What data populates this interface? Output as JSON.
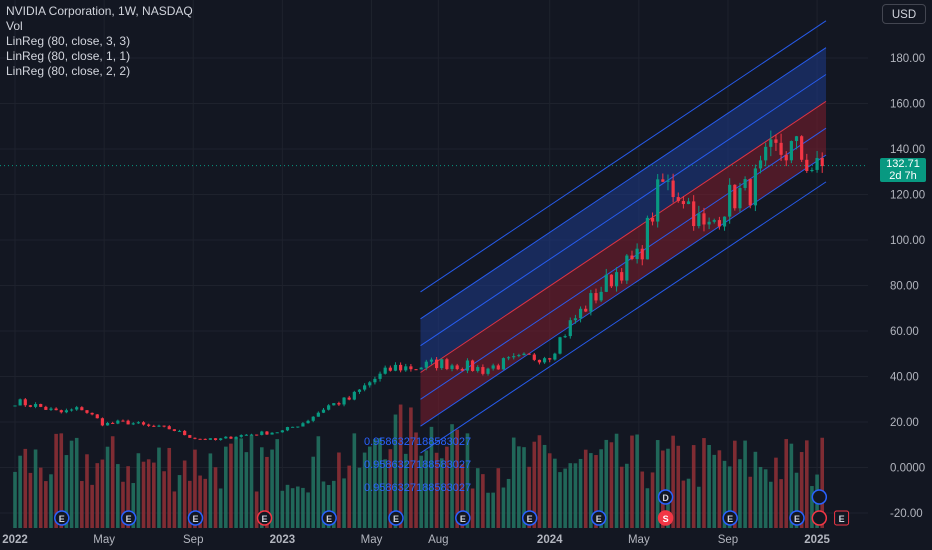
{
  "legend": {
    "symbol": "NVIDIA Corporation, 1W, NASDAQ",
    "volume": "Vol",
    "linreg": [
      "LinReg (80, close, 3, 3)",
      "LinReg (80, close, 1, 1)",
      "LinReg (80, close, 2, 2)"
    ]
  },
  "currency_button": "USD",
  "price_tag": {
    "value": "132.71",
    "countdown": "2d 7h"
  },
  "colors": {
    "background": "#131722",
    "up": "#089981",
    "down": "#f23645",
    "channel_line": "#2962ff",
    "channel_upper_fill": "#1e3a8a",
    "channel_lower_fill": "#7f1d2d",
    "up_volume": "#22705f",
    "down_volume": "#8c2f35"
  },
  "overlay_labels": [
    "0.9586327188583027",
    "0.9586327188583027",
    "0.9586327188583027"
  ],
  "event_icons": [
    {
      "month": 2.1,
      "letter": "E",
      "kind": "earnings"
    },
    {
      "month": 5.1,
      "letter": "E",
      "kind": "earnings"
    },
    {
      "month": 8.1,
      "letter": "E",
      "kind": "earnings"
    },
    {
      "month": 11.2,
      "letter": "E",
      "kind": "earnings-down"
    },
    {
      "month": 14.1,
      "letter": "E",
      "kind": "earnings"
    },
    {
      "month": 17.1,
      "letter": "E",
      "kind": "earnings"
    },
    {
      "month": 20.1,
      "letter": "E",
      "kind": "earnings"
    },
    {
      "month": 23.1,
      "letter": "E",
      "kind": "earnings"
    },
    {
      "month": 26.2,
      "letter": "E",
      "kind": "earnings"
    },
    {
      "month": 29.2,
      "letter": "S",
      "kind": "split"
    },
    {
      "month": 29.2,
      "letter": "D",
      "kind": "dividend"
    },
    {
      "month": 32.1,
      "letter": "E",
      "kind": "earnings"
    },
    {
      "month": 35.1,
      "letter": "E",
      "kind": "earnings"
    },
    {
      "month": 36.1,
      "letter": "",
      "kind": "event-future"
    },
    {
      "month": 36.1,
      "letter": "",
      "kind": "flash-future"
    },
    {
      "month": 37.1,
      "letter": "E",
      "kind": "earnings-upcoming"
    }
  ],
  "chart_data": {
    "type": "candlestick",
    "title": "NVIDIA Corporation, 1W, NASDAQ",
    "y_ticks": [
      "180.00",
      "160.00",
      "140.00",
      "120.00",
      "100.00",
      "80.00",
      "60.00",
      "40.00",
      "20.00",
      "0.0000",
      "-20.00"
    ],
    "x_ticks": [
      {
        "label": "2022",
        "month": 0
      },
      {
        "label": "May",
        "month": 4
      },
      {
        "label": "Sep",
        "month": 8
      },
      {
        "label": "2023",
        "month": 12
      },
      {
        "label": "May",
        "month": 16
      },
      {
        "label": "Aug",
        "month": 19
      },
      {
        "label": "2024",
        "month": 24
      },
      {
        "label": "May",
        "month": 28
      },
      {
        "label": "Sep",
        "month": 32
      },
      {
        "label": "2025",
        "month": 36
      }
    ],
    "ylim": [
      -24,
      196
    ],
    "last_close": 132.71,
    "close_path": [
      [
        0,
        29
      ],
      [
        1,
        27
      ],
      [
        2,
        24
      ],
      [
        3,
        26
      ],
      [
        4,
        19
      ],
      [
        5,
        20
      ],
      [
        6,
        18
      ],
      [
        7,
        17
      ],
      [
        8,
        13
      ],
      [
        9,
        12
      ],
      [
        10,
        14
      ],
      [
        11,
        15
      ],
      [
        12,
        16
      ],
      [
        13,
        20
      ],
      [
        14,
        27
      ],
      [
        15,
        30
      ],
      [
        16,
        38
      ],
      [
        17,
        44
      ],
      [
        18,
        44
      ],
      [
        19,
        46
      ],
      [
        20,
        45
      ],
      [
        21,
        43
      ],
      [
        22,
        46
      ],
      [
        23,
        48
      ],
      [
        24,
        50
      ],
      [
        25,
        64
      ],
      [
        26,
        75
      ],
      [
        27,
        86
      ],
      [
        28,
        92
      ],
      [
        29,
        125
      ],
      [
        30,
        120
      ],
      [
        31,
        103
      ],
      [
        32,
        118
      ],
      [
        33,
        122
      ],
      [
        34,
        138
      ],
      [
        35,
        140
      ],
      [
        36,
        130
      ],
      [
        36.4,
        132.71
      ]
    ],
    "linreg_channel": {
      "start_month": 18.2,
      "end_month": 36.4,
      "center": [
        34.5,
        148.5
      ],
      "deviations": [
        -3,
        -2,
        -1,
        0,
        1,
        2,
        3
      ],
      "deviation_step": 11.8
    },
    "volume": {
      "ylim_share": 0.2,
      "series": "weekly volume bars"
    }
  }
}
